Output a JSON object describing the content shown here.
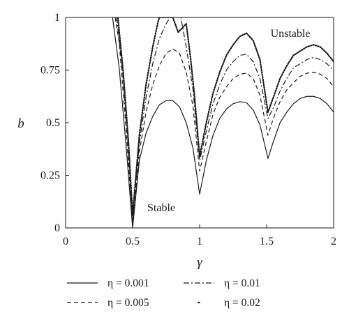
{
  "chart_data": {
    "type": "line",
    "xlabel": "γ",
    "ylabel": "b",
    "xlim": [
      0,
      2
    ],
    "ylim": [
      0,
      1
    ],
    "xticks": [
      {
        "value": 0,
        "label": "0"
      },
      {
        "value": 0.5,
        "label": "0.5"
      },
      {
        "value": 1,
        "label": "1"
      },
      {
        "value": 1.5,
        "label": "1.5"
      },
      {
        "value": 2,
        "label": "2"
      }
    ],
    "yticks": [
      {
        "value": 0,
        "label": "0"
      },
      {
        "value": 0.25,
        "label": "0.25"
      },
      {
        "value": 0.5,
        "label": "0.5"
      },
      {
        "value": 0.75,
        "label": "0.75"
      },
      {
        "value": 1,
        "label": "1"
      }
    ],
    "grid": false,
    "legend_position": "below",
    "annotations": [
      {
        "text": "Unstable",
        "x": 1.48,
        "y": 0.945
      },
      {
        "text": "Stable",
        "x": 0.715,
        "y": 0.105
      }
    ],
    "series": [
      {
        "name": "η = 0.001",
        "line_style": "solid",
        "points": [
          [
            0.35,
            1.0
          ],
          [
            0.4,
            0.76
          ],
          [
            0.45,
            0.4
          ],
          [
            0.5,
            0.0
          ],
          [
            0.55,
            0.32
          ],
          [
            0.6,
            0.45
          ],
          [
            0.65,
            0.53
          ],
          [
            0.7,
            0.585
          ],
          [
            0.75,
            0.605
          ],
          [
            0.8,
            0.605
          ],
          [
            0.85,
            0.575
          ],
          [
            0.9,
            0.5
          ],
          [
            0.95,
            0.38
          ],
          [
            1.0,
            0.16
          ],
          [
            1.05,
            0.32
          ],
          [
            1.1,
            0.44
          ],
          [
            1.15,
            0.52
          ],
          [
            1.2,
            0.565
          ],
          [
            1.25,
            0.59
          ],
          [
            1.3,
            0.6
          ],
          [
            1.35,
            0.595
          ],
          [
            1.4,
            0.56
          ],
          [
            1.45,
            0.49
          ],
          [
            1.51,
            0.33
          ],
          [
            1.55,
            0.41
          ],
          [
            1.6,
            0.5
          ],
          [
            1.65,
            0.55
          ],
          [
            1.7,
            0.59
          ],
          [
            1.75,
            0.615
          ],
          [
            1.8,
            0.625
          ],
          [
            1.85,
            0.625
          ],
          [
            1.9,
            0.615
          ],
          [
            1.95,
            0.59
          ],
          [
            2.0,
            0.55
          ]
        ]
      },
      {
        "name": "η = 0.005",
        "line_style": "dashed",
        "points": [
          [
            0.37,
            1.0
          ],
          [
            0.4,
            0.88
          ],
          [
            0.45,
            0.48
          ],
          [
            0.5,
            0.02
          ],
          [
            0.55,
            0.36
          ],
          [
            0.6,
            0.55
          ],
          [
            0.65,
            0.68
          ],
          [
            0.7,
            0.77
          ],
          [
            0.75,
            0.83
          ],
          [
            0.8,
            0.85
          ],
          [
            0.85,
            0.83
          ],
          [
            0.9,
            0.74
          ],
          [
            0.95,
            0.58
          ],
          [
            1.0,
            0.27
          ],
          [
            1.05,
            0.41
          ],
          [
            1.1,
            0.54
          ],
          [
            1.15,
            0.62
          ],
          [
            1.2,
            0.67
          ],
          [
            1.25,
            0.71
          ],
          [
            1.3,
            0.73
          ],
          [
            1.35,
            0.735
          ],
          [
            1.4,
            0.71
          ],
          [
            1.45,
            0.63
          ],
          [
            1.51,
            0.44
          ],
          [
            1.55,
            0.52
          ],
          [
            1.6,
            0.6
          ],
          [
            1.65,
            0.655
          ],
          [
            1.7,
            0.69
          ],
          [
            1.75,
            0.72
          ],
          [
            1.8,
            0.735
          ],
          [
            1.85,
            0.74
          ],
          [
            1.9,
            0.73
          ],
          [
            1.95,
            0.71
          ],
          [
            2.0,
            0.67
          ]
        ]
      },
      {
        "name": "η = 0.01",
        "line_style": "dashdot",
        "points": [
          [
            0.38,
            1.0
          ],
          [
            0.42,
            0.78
          ],
          [
            0.46,
            0.45
          ],
          [
            0.5,
            0.04
          ],
          [
            0.55,
            0.4
          ],
          [
            0.6,
            0.62
          ],
          [
            0.65,
            0.78
          ],
          [
            0.7,
            0.9
          ],
          [
            0.75,
            0.97
          ],
          [
            0.78,
            1.0
          ],
          [
            0.86,
            1.0
          ],
          [
            0.9,
            0.86
          ],
          [
            0.95,
            0.66
          ],
          [
            1.0,
            0.32
          ],
          [
            1.05,
            0.46
          ],
          [
            1.1,
            0.59
          ],
          [
            1.15,
            0.68
          ],
          [
            1.2,
            0.75
          ],
          [
            1.25,
            0.79
          ],
          [
            1.3,
            0.82
          ],
          [
            1.35,
            0.825
          ],
          [
            1.4,
            0.79
          ],
          [
            1.45,
            0.71
          ],
          [
            1.51,
            0.52
          ],
          [
            1.55,
            0.57
          ],
          [
            1.6,
            0.65
          ],
          [
            1.65,
            0.71
          ],
          [
            1.7,
            0.76
          ],
          [
            1.75,
            0.78
          ],
          [
            1.8,
            0.8
          ],
          [
            1.85,
            0.81
          ],
          [
            1.9,
            0.8
          ],
          [
            1.95,
            0.78
          ],
          [
            2.0,
            0.75
          ]
        ]
      },
      {
        "name": "η = 0.02",
        "line_style": "dotted",
        "points": [
          [
            0.39,
            1.0
          ],
          [
            0.43,
            0.74
          ],
          [
            0.47,
            0.4
          ],
          [
            0.5,
            0.06
          ],
          [
            0.55,
            0.44
          ],
          [
            0.6,
            0.68
          ],
          [
            0.65,
            0.86
          ],
          [
            0.69,
            0.98
          ],
          [
            0.7,
            1.0
          ],
          [
            0.79,
            1.0
          ],
          [
            0.8,
            1.0
          ],
          [
            0.84,
            0.93
          ],
          [
            0.9,
            0.97
          ],
          [
            0.93,
            0.82
          ],
          [
            0.96,
            0.64
          ],
          [
            1.0,
            0.34
          ],
          [
            1.05,
            0.5
          ],
          [
            1.1,
            0.64
          ],
          [
            1.15,
            0.74
          ],
          [
            1.2,
            0.82
          ],
          [
            1.25,
            0.87
          ],
          [
            1.3,
            0.91
          ],
          [
            1.35,
            0.925
          ],
          [
            1.4,
            0.89
          ],
          [
            1.45,
            0.8
          ],
          [
            1.51,
            0.55
          ],
          [
            1.55,
            0.62
          ],
          [
            1.6,
            0.71
          ],
          [
            1.65,
            0.77
          ],
          [
            1.7,
            0.82
          ],
          [
            1.75,
            0.84
          ],
          [
            1.8,
            0.86
          ],
          [
            1.85,
            0.87
          ],
          [
            1.9,
            0.86
          ],
          [
            1.95,
            0.83
          ],
          [
            2.0,
            0.79
          ]
        ]
      }
    ]
  }
}
